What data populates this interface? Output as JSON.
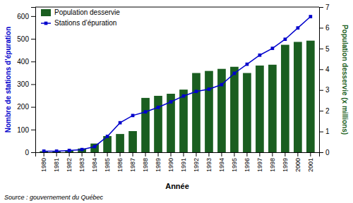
{
  "chart_data": {
    "type": "bar",
    "x_label": "Année",
    "y_label": "Nombre de stations d’épuration",
    "y2_label": "Population desservie (x millions)",
    "source": "Source : gouvernement du Québec",
    "categories": [
      "1980",
      "1981",
      "1982",
      "1983",
      "1984",
      "1985",
      "1986",
      "1987",
      "1988",
      "1989",
      "1990",
      "1991",
      "1992",
      "1993",
      "1994",
      "1995",
      "1996",
      "1997",
      "1998",
      "1999",
      "2000",
      "2001"
    ],
    "series": [
      {
        "name": "Population desservie",
        "type": "bar",
        "axis": "y2",
        "color": "#1a5e20",
        "values": [
          0.05,
          0.05,
          0.08,
          0.18,
          0.42,
          0.78,
          0.88,
          1.02,
          2.62,
          2.72,
          2.82,
          3.02,
          3.82,
          3.92,
          4.02,
          4.12,
          3.82,
          4.18,
          4.22,
          5.18,
          5.32,
          5.38
        ]
      },
      {
        "name": "Stations d’épuration",
        "type": "line",
        "color": "#0000cc",
        "marker": "square",
        "values": [
          5,
          5,
          8,
          12,
          25,
          70,
          130,
          162,
          178,
          198,
          222,
          248,
          268,
          278,
          298,
          348,
          388,
          428,
          458,
          498,
          548,
          598
        ]
      }
    ],
    "ylim": [
      0,
      640
    ],
    "yticks": [
      0,
      100,
      200,
      300,
      400,
      500,
      600
    ],
    "y2lim": [
      0,
      7
    ],
    "y2ticks": [
      0,
      1,
      2,
      3,
      4,
      5,
      6,
      7
    ],
    "legend": "upper left",
    "grid": false
  }
}
